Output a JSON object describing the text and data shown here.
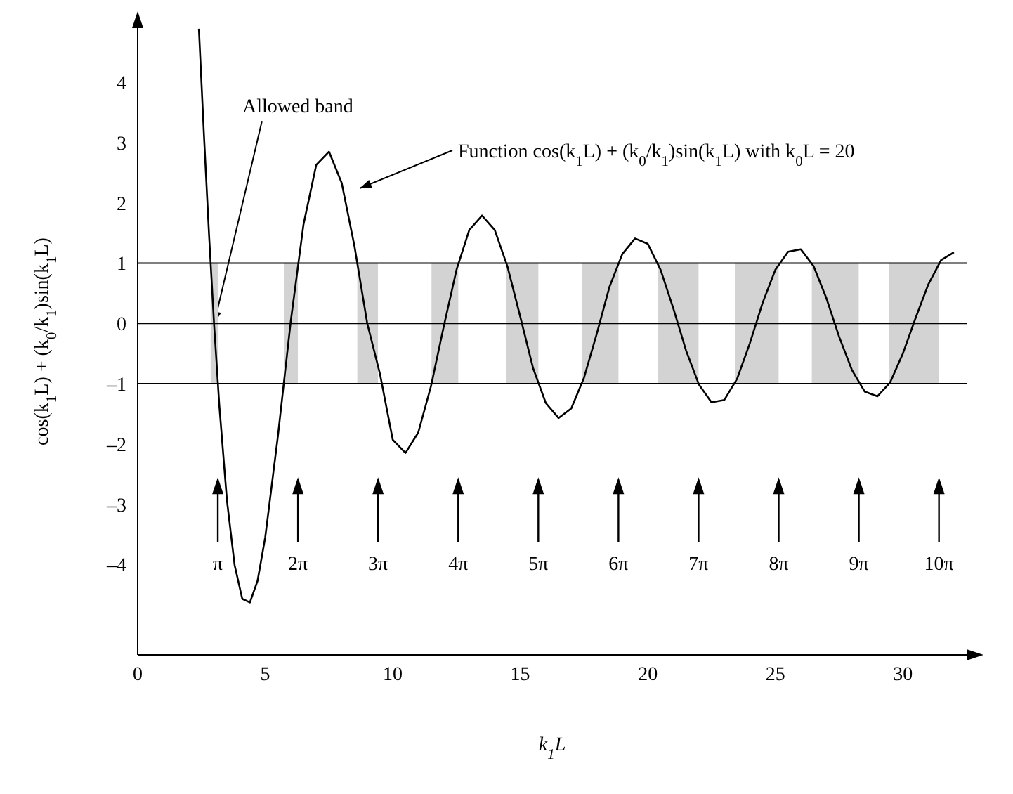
{
  "chart_data": {
    "type": "line",
    "xlabel": "k$_{1}$L",
    "ylabel": "cos(k$_{1}$L) + (k$_{0}$/k$_{1}$)sin(k$_{1}$L)",
    "x": [
      2.4,
      2.6,
      2.8,
      3.0,
      3.2,
      3.5,
      3.8,
      4.1,
      4.4,
      4.7,
      5.0,
      5.5,
      6.0,
      6.5,
      7.0,
      7.5,
      8.0,
      8.5,
      9.0,
      9.5,
      10.0,
      10.5,
      11.0,
      11.5,
      12.0,
      12.5,
      13.0,
      13.5,
      14.0,
      14.5,
      15.0,
      15.5,
      16.0,
      16.5,
      17.0,
      17.5,
      18.0,
      18.5,
      19.0,
      19.5,
      20.0,
      20.5,
      21.0,
      21.5,
      22.0,
      22.5,
      23.0,
      23.5,
      24.0,
      24.5,
      25.0,
      25.5,
      26.0,
      26.5,
      27.0,
      27.5,
      28.0,
      28.5,
      29.0,
      29.5,
      30.0,
      30.5,
      31.0,
      31.5,
      32.0
    ],
    "values": [
      4.89,
      3.11,
      1.45,
      -0.05,
      -1.36,
      -2.94,
      -4.01,
      -4.57,
      -4.63,
      -4.27,
      -3.55,
      -1.86,
      0.03,
      1.64,
      2.63,
      2.85,
      2.33,
      1.28,
      0.0,
      -0.84,
      -1.93,
      -2.15,
      -1.81,
      -1.04,
      -0.05,
      0.89,
      1.55,
      1.79,
      1.55,
      0.94,
      0.11,
      -0.74,
      -1.32,
      -1.57,
      -1.41,
      -0.9,
      -0.17,
      0.61,
      1.15,
      1.41,
      1.32,
      0.89,
      0.25,
      -0.45,
      -1.01,
      -1.31,
      -1.27,
      -0.92,
      -0.33,
      0.34,
      0.89,
      1.19,
      1.23,
      0.95,
      0.42,
      -0.22,
      -0.77,
      -1.13,
      -1.21,
      -0.98,
      -0.5,
      0.09,
      0.65,
      1.05,
      1.18
    ],
    "color": "#000000",
    "marker": "none",
    "line_style": "solid",
    "xlim": [
      0,
      32.5
    ],
    "xticks": [
      0,
      5,
      10,
      15,
      20,
      25,
      30
    ],
    "ylim": [
      -5.5,
      4.9
    ],
    "yticks": [
      {
        "value": -4,
        "label": "–4"
      },
      {
        "value": -3,
        "label": "–3"
      },
      {
        "value": -2,
        "label": "–2"
      },
      {
        "value": -1,
        "label": "–1"
      },
      0,
      1,
      2,
      3,
      4
    ],
    "ref_lines": [
      {
        "axis": "y",
        "value": 1,
        "color": "#000000"
      },
      {
        "axis": "y",
        "value": 0,
        "color": "#000000"
      },
      {
        "axis": "y",
        "value": -1,
        "color": "#000000"
      }
    ],
    "bands": [
      {
        "axis": "x",
        "from": 2.86,
        "to": 3.14,
        "color": "#d3d3d3"
      },
      {
        "axis": "x",
        "from": 5.73,
        "to": 6.28,
        "color": "#d3d3d3"
      },
      {
        "axis": "x",
        "from": 8.61,
        "to": 9.42,
        "color": "#d3d3d3"
      },
      {
        "axis": "x",
        "from": 11.52,
        "to": 12.57,
        "color": "#d3d3d3"
      },
      {
        "axis": "x",
        "from": 14.45,
        "to": 15.71,
        "color": "#d3d3d3"
      },
      {
        "axis": "x",
        "from": 17.42,
        "to": 18.85,
        "color": "#d3d3d3"
      },
      {
        "axis": "x",
        "from": 20.4,
        "to": 21.99,
        "color": "#d3d3d3"
      },
      {
        "axis": "x",
        "from": 23.41,
        "to": 25.13,
        "color": "#d3d3d3"
      },
      {
        "axis": "x",
        "from": 26.43,
        "to": 28.27,
        "color": "#d3d3d3"
      },
      {
        "axis": "x",
        "from": 29.47,
        "to": 31.42,
        "color": "#d3d3d3"
      }
    ],
    "x2lim": [
      0,
      32.5
    ],
    "x2ticks": [
      {
        "value": 3.1416,
        "label": "π"
      },
      {
        "value": 6.2832,
        "label": "2π"
      },
      {
        "value": 9.4248,
        "label": "3π"
      },
      {
        "value": 12.5664,
        "label": "4π"
      },
      {
        "value": 15.708,
        "label": "5π"
      },
      {
        "value": 18.8496,
        "label": "6π"
      },
      {
        "value": 21.9911,
        "label": "7π"
      },
      {
        "value": 25.1327,
        "label": "8π"
      },
      {
        "value": 28.2743,
        "label": "9π"
      },
      {
        "value": 31.4159,
        "label": "10π"
      }
    ],
    "annotations": [
      {
        "text": "Allowed band",
        "x": 3.0,
        "y": 0
      },
      "Function cos(k$_{1}$L) + (k$_{0}$/k$_{1}$)sin(k$_{1}$L) with k$_{0}$L = 20"
    ]
  }
}
